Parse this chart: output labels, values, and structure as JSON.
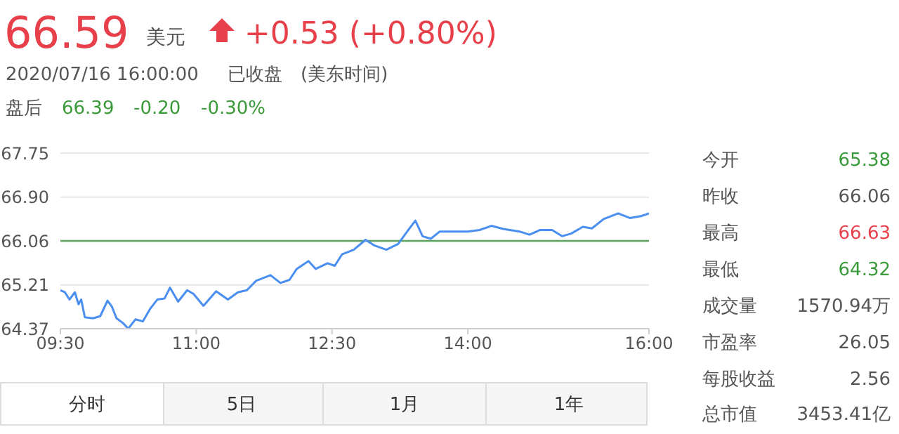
{
  "chart_data": {
    "type": "line",
    "title": "66.59",
    "annotations": [
      "美元",
      "+0.53 (+0.80%)",
      "2020/07/16 16:00:00",
      "已收盘",
      "(美东时间)",
      "盘后",
      "66.39",
      "-0.20",
      "-0.30%",
      "今开",
      "65.38",
      "昨收",
      "66.06",
      "最高",
      "66.63",
      "最低",
      "64.32",
      "成交量",
      "1570.94万",
      "市盈率",
      "26.05",
      "每股收益",
      "2.56",
      "总市值",
      "3453.41亿",
      "分时",
      "5日",
      "1月",
      "1年"
    ],
    "xlim": [
      9.5,
      16
    ],
    "xticks": [
      {
        "value": 9.5,
        "label": "09:30"
      },
      {
        "value": 11,
        "label": "11:00"
      },
      {
        "value": 12.5,
        "label": "12:30"
      },
      {
        "value": 14,
        "label": "14:00"
      },
      {
        "value": 16,
        "label": "16:00"
      }
    ],
    "ylim": [
      64.37,
      67.75
    ],
    "yticks": [
      64.37,
      65.21,
      66.06,
      {
        "value": 66.9,
        "label": "66.90"
      },
      67.75
    ],
    "grid": "y",
    "marker": "none",
    "line_style": "solid",
    "ref_lines": [
      {
        "axis": "y",
        "value": 66.06,
        "color": "#5aa05a"
      }
    ],
    "series": [
      {
        "color": "#4a8ff0",
        "x": [
          9.5,
          9.55,
          9.6,
          9.66,
          9.7,
          9.73,
          9.77,
          9.86,
          9.94,
          10.02,
          10.07,
          10.12,
          10.19,
          10.25,
          10.33,
          10.41,
          10.49,
          10.57,
          10.65,
          10.71,
          10.8,
          10.9,
          10.97,
          11.08,
          11.22,
          11.35,
          11.46,
          11.56,
          11.66,
          11.82,
          11.93,
          12.03,
          12.11,
          12.24,
          12.32,
          12.45,
          12.53,
          12.61,
          12.74,
          12.87,
          12.97,
          13.1,
          13.23,
          13.33,
          13.42,
          13.5,
          13.59,
          13.69,
          13.85,
          14.0,
          14.13,
          14.26,
          14.39,
          14.57,
          14.68,
          14.8,
          14.93,
          15.04,
          15.14,
          15.27,
          15.37,
          15.5,
          15.66,
          15.79,
          15.92,
          16.0
        ],
        "values": [
          65.11,
          65.07,
          64.93,
          65.07,
          64.84,
          64.93,
          64.59,
          64.57,
          64.61,
          64.91,
          64.79,
          64.57,
          64.48,
          64.37,
          64.55,
          64.51,
          64.75,
          64.93,
          64.95,
          65.16,
          64.89,
          65.11,
          65.04,
          64.81,
          65.09,
          64.93,
          65.07,
          65.11,
          65.29,
          65.4,
          65.25,
          65.31,
          65.52,
          65.67,
          65.52,
          65.63,
          65.58,
          65.8,
          65.89,
          66.08,
          65.97,
          65.89,
          66.0,
          66.24,
          66.45,
          66.15,
          66.1,
          66.24,
          66.24,
          66.24,
          66.27,
          66.35,
          66.29,
          66.24,
          66.18,
          66.27,
          66.27,
          66.15,
          66.2,
          66.33,
          66.3,
          66.48,
          66.59,
          66.5,
          66.54,
          66.59
        ]
      }
    ]
  }
}
